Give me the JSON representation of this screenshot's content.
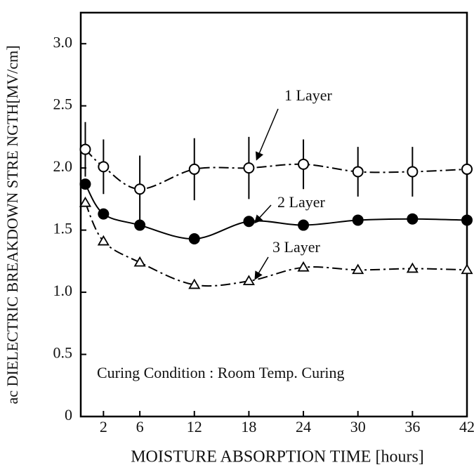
{
  "chart_data": {
    "type": "line",
    "xlabel": "MOISTURE ABSORPTION TIME [hours]",
    "ylabel": "ac DIELECTRIC BREAKDOWN STRE NGTH[MV/cm]",
    "x": [
      0,
      2,
      6,
      12,
      18,
      24,
      30,
      36,
      42
    ],
    "series": [
      {
        "name": "1 Layer",
        "color": "#000000",
        "marker": "open-circle",
        "linestyle": "dashdot",
        "values": [
          2.15,
          2.01,
          1.83,
          1.99,
          2.0,
          2.03,
          1.97,
          1.97,
          1.99
        ],
        "errors": [
          0.22,
          0.22,
          0.27,
          0.25,
          0.25,
          0.2,
          0.2,
          0.2,
          0.17
        ]
      },
      {
        "name": "2 Layer",
        "color": "#000000",
        "marker": "filled-circle",
        "linestyle": "solid",
        "values": [
          1.87,
          1.63,
          1.54,
          1.43,
          1.57,
          1.54,
          1.58,
          1.59,
          1.58
        ]
      },
      {
        "name": "3 Layer",
        "color": "#000000",
        "marker": "open-triangle",
        "linestyle": "dashdot",
        "values": [
          1.72,
          1.41,
          1.24,
          1.06,
          1.09,
          1.2,
          1.18,
          1.19,
          1.18
        ]
      }
    ],
    "annotations": [
      "Curing Condition : Room Temp. Curing"
    ],
    "xlim": [
      -0.5,
      42
    ],
    "ylim": [
      0,
      3.25
    ],
    "xticks": [
      2,
      6,
      12,
      18,
      24,
      30,
      36,
      42
    ],
    "yticks": [
      0,
      0.5,
      {
        "value": 1,
        "label": "1.0"
      },
      1.5,
      {
        "value": 2,
        "label": "2.0"
      },
      2.5,
      {
        "value": 3,
        "label": "3.0"
      }
    ],
    "grid": false
  }
}
